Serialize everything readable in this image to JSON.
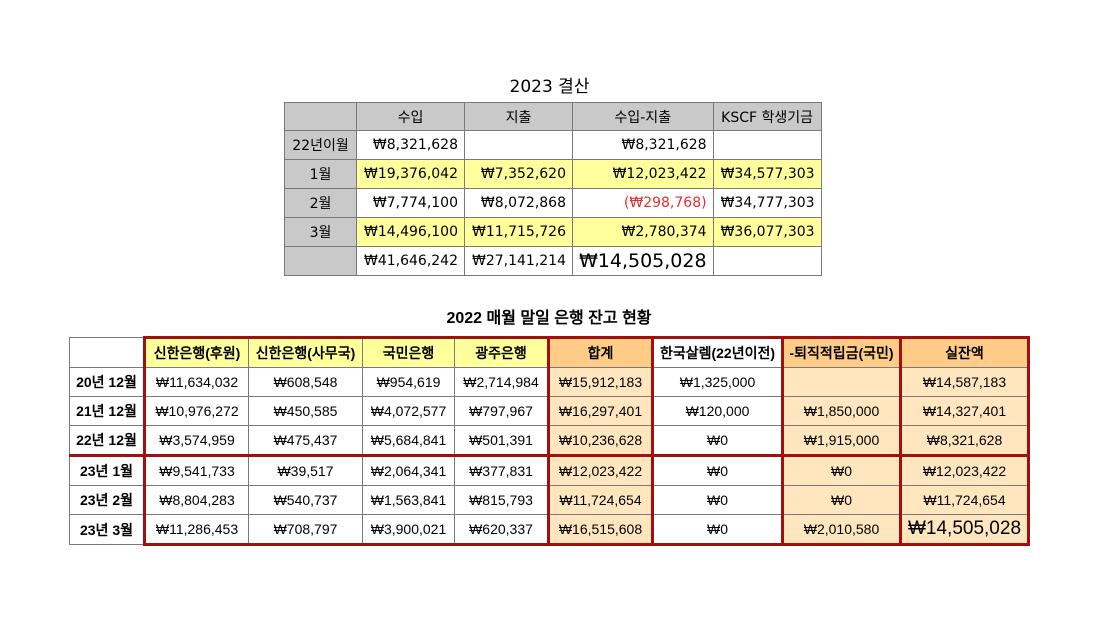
{
  "table1": {
    "title": "2023 결산",
    "headers": [
      "",
      "수입",
      "지출",
      "수입-지출",
      "KSCF 학생기금"
    ],
    "rows": [
      {
        "label": "22년이월",
        "cells": [
          "₩8,321,628",
          "",
          "₩8,321,628",
          ""
        ]
      },
      {
        "label": "1월",
        "cells": [
          "₩19,376,042",
          "₩7,352,620",
          "₩12,023,422",
          "₩34,577,303"
        ]
      },
      {
        "label": "2월",
        "cells": [
          "₩7,774,100",
          "₩8,072,868",
          "(₩298,768)",
          "₩34,777,303"
        ]
      },
      {
        "label": "3월",
        "cells": [
          "₩14,496,100",
          "₩11,715,726",
          "₩2,780,374",
          "₩36,077,303"
        ]
      },
      {
        "label": "",
        "cells": [
          "₩41,646,242",
          "₩27,141,214",
          "₩14,505,028",
          ""
        ]
      }
    ],
    "colors": {
      "header_bg": "#c9c9c9",
      "highlight": "#ffff9c",
      "negative": "#e03030"
    }
  },
  "table2": {
    "title": "2022 매월 말일 은행 잔고 현황",
    "headers": [
      "",
      "신한은행(후원)",
      "신한은행(사무국)",
      "국민은행",
      "광주은행",
      "합계",
      "한국살렘(22년이전)",
      "-퇴직적립금(국민)",
      "실잔액"
    ],
    "rows": [
      {
        "label": "20년 12월",
        "cells": [
          "₩11,634,032",
          "₩608,548",
          "₩954,619",
          "₩2,714,984",
          "₩15,912,183",
          "₩1,325,000",
          "",
          "₩14,587,183"
        ]
      },
      {
        "label": "21년 12월",
        "cells": [
          "₩10,976,272",
          "₩450,585",
          "₩4,072,577",
          "₩797,967",
          "₩16,297,401",
          "₩120,000",
          "₩1,850,000",
          "₩14,327,401"
        ]
      },
      {
        "label": "22년 12월",
        "cells": [
          "₩3,574,959",
          "₩475,437",
          "₩5,684,841",
          "₩501,391",
          "₩10,236,628",
          "₩0",
          "₩1,915,000",
          "₩8,321,628"
        ]
      },
      {
        "label": "23년 1월",
        "cells": [
          "₩9,541,733",
          "₩39,517",
          "₩2,064,341",
          "₩377,831",
          "₩12,023,422",
          "₩0",
          "₩0",
          "₩12,023,422"
        ]
      },
      {
        "label": "23년 2월",
        "cells": [
          "₩8,804,283",
          "₩540,737",
          "₩1,563,841",
          "₩815,793",
          "₩11,724,654",
          "₩0",
          "₩0",
          "₩11,724,654"
        ]
      },
      {
        "label": "23년 3월",
        "cells": [
          "₩11,286,453",
          "₩708,797",
          "₩3,900,021",
          "₩620,337",
          "₩16,515,608",
          "₩0",
          "₩2,010,580",
          "₩14,505,028"
        ]
      }
    ],
    "colors": {
      "header_yellow": "#ffff9c",
      "header_orange": "#ffcc88",
      "cell_orange": "#ffe6bf",
      "border_red": "#a01010"
    }
  }
}
